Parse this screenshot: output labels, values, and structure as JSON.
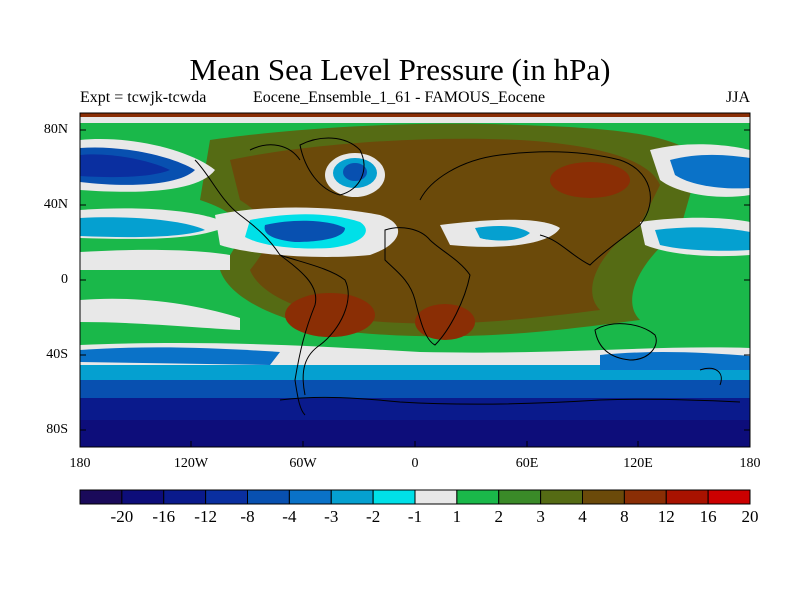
{
  "title": "Mean Sea Level Pressure (in hPa)",
  "subtitle_left": "Expt = tcwjk-tcwda",
  "subtitle_center": "Eocene_Ensemble_1_61 - FAMOUS_Eocene",
  "subtitle_right": "JJA",
  "lat_labels": [
    "80N",
    "40N",
    "0",
    "40S",
    "80S"
  ],
  "lon_labels": [
    "180",
    "120W",
    "60W",
    "0",
    "60E",
    "120E",
    "180"
  ],
  "colorbar": {
    "labels": [
      "-20",
      "-16",
      "-12",
      "-8",
      "-4",
      "-3",
      "-2",
      "-1",
      "1",
      "2",
      "3",
      "4",
      "8",
      "12",
      "16",
      "20"
    ],
    "colors": [
      "#1a0a5a",
      "#0d0d7a",
      "#0a1a8c",
      "#0a2fa0",
      "#0850b0",
      "#0a72c8",
      "#05a0d0",
      "#00e0e8",
      "#e8e8e8",
      "#1ab84a",
      "#3a8a28",
      "#556b14",
      "#6b4a0a",
      "#8a2e05",
      "#a81200",
      "#cc0000"
    ]
  }
}
